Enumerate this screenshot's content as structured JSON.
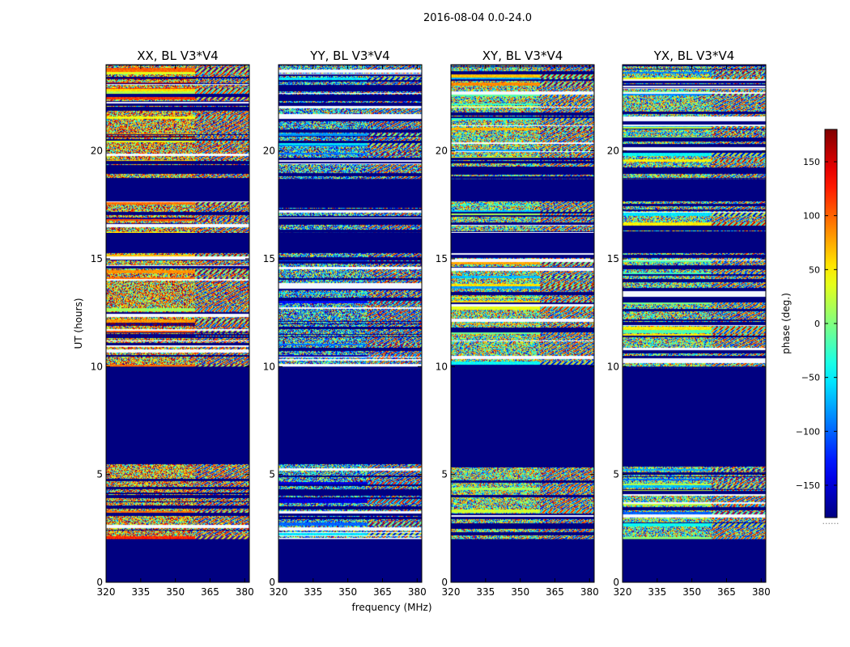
{
  "chart_data": {
    "type": "heatmap",
    "suptitle": "2016-08-04 0.0-24.0",
    "colormap": "jet",
    "xlabel": "frequency (MHz)",
    "ylabel": "UT (hours)",
    "xlim": [
      320,
      382
    ],
    "ylim": [
      0,
      24
    ],
    "xticks": [
      320,
      335,
      350,
      365,
      380
    ],
    "yticks": [
      0,
      5,
      10,
      15,
      20
    ],
    "colorbar": {
      "label": "phase (deg.)",
      "range": [
        -180,
        180
      ],
      "ticks": [
        150,
        100,
        50,
        0,
        -50,
        -100,
        -150
      ],
      "tick_labels": [
        "150",
        "100",
        "50",
        "0",
        "−50",
        "−100",
        "−150"
      ],
      "extra_label": "......"
    },
    "panels": [
      {
        "title": "XX, BL V3*V4",
        "seed": 11,
        "bias": 0.78
      },
      {
        "title": "YY, BL V3*V4",
        "seed": 23,
        "bias": 0.22
      },
      {
        "title": "XY, BL V3*V4",
        "seed": 37,
        "bias": 0.5
      },
      {
        "title": "YX, BL V3*V4",
        "seed": 53,
        "bias": 0.45
      }
    ],
    "flagged_ut_ranges_hours": [
      [
        0,
        2.0
      ],
      [
        5.5,
        10.0
      ],
      [
        15.3,
        16.2
      ],
      [
        17.7,
        18.7
      ]
    ],
    "noise_ut_ranges_hours": [
      [
        2.0,
        5.5
      ],
      [
        10.0,
        15.3
      ],
      [
        16.2,
        17.7
      ],
      [
        18.7,
        24.0
      ]
    ]
  }
}
